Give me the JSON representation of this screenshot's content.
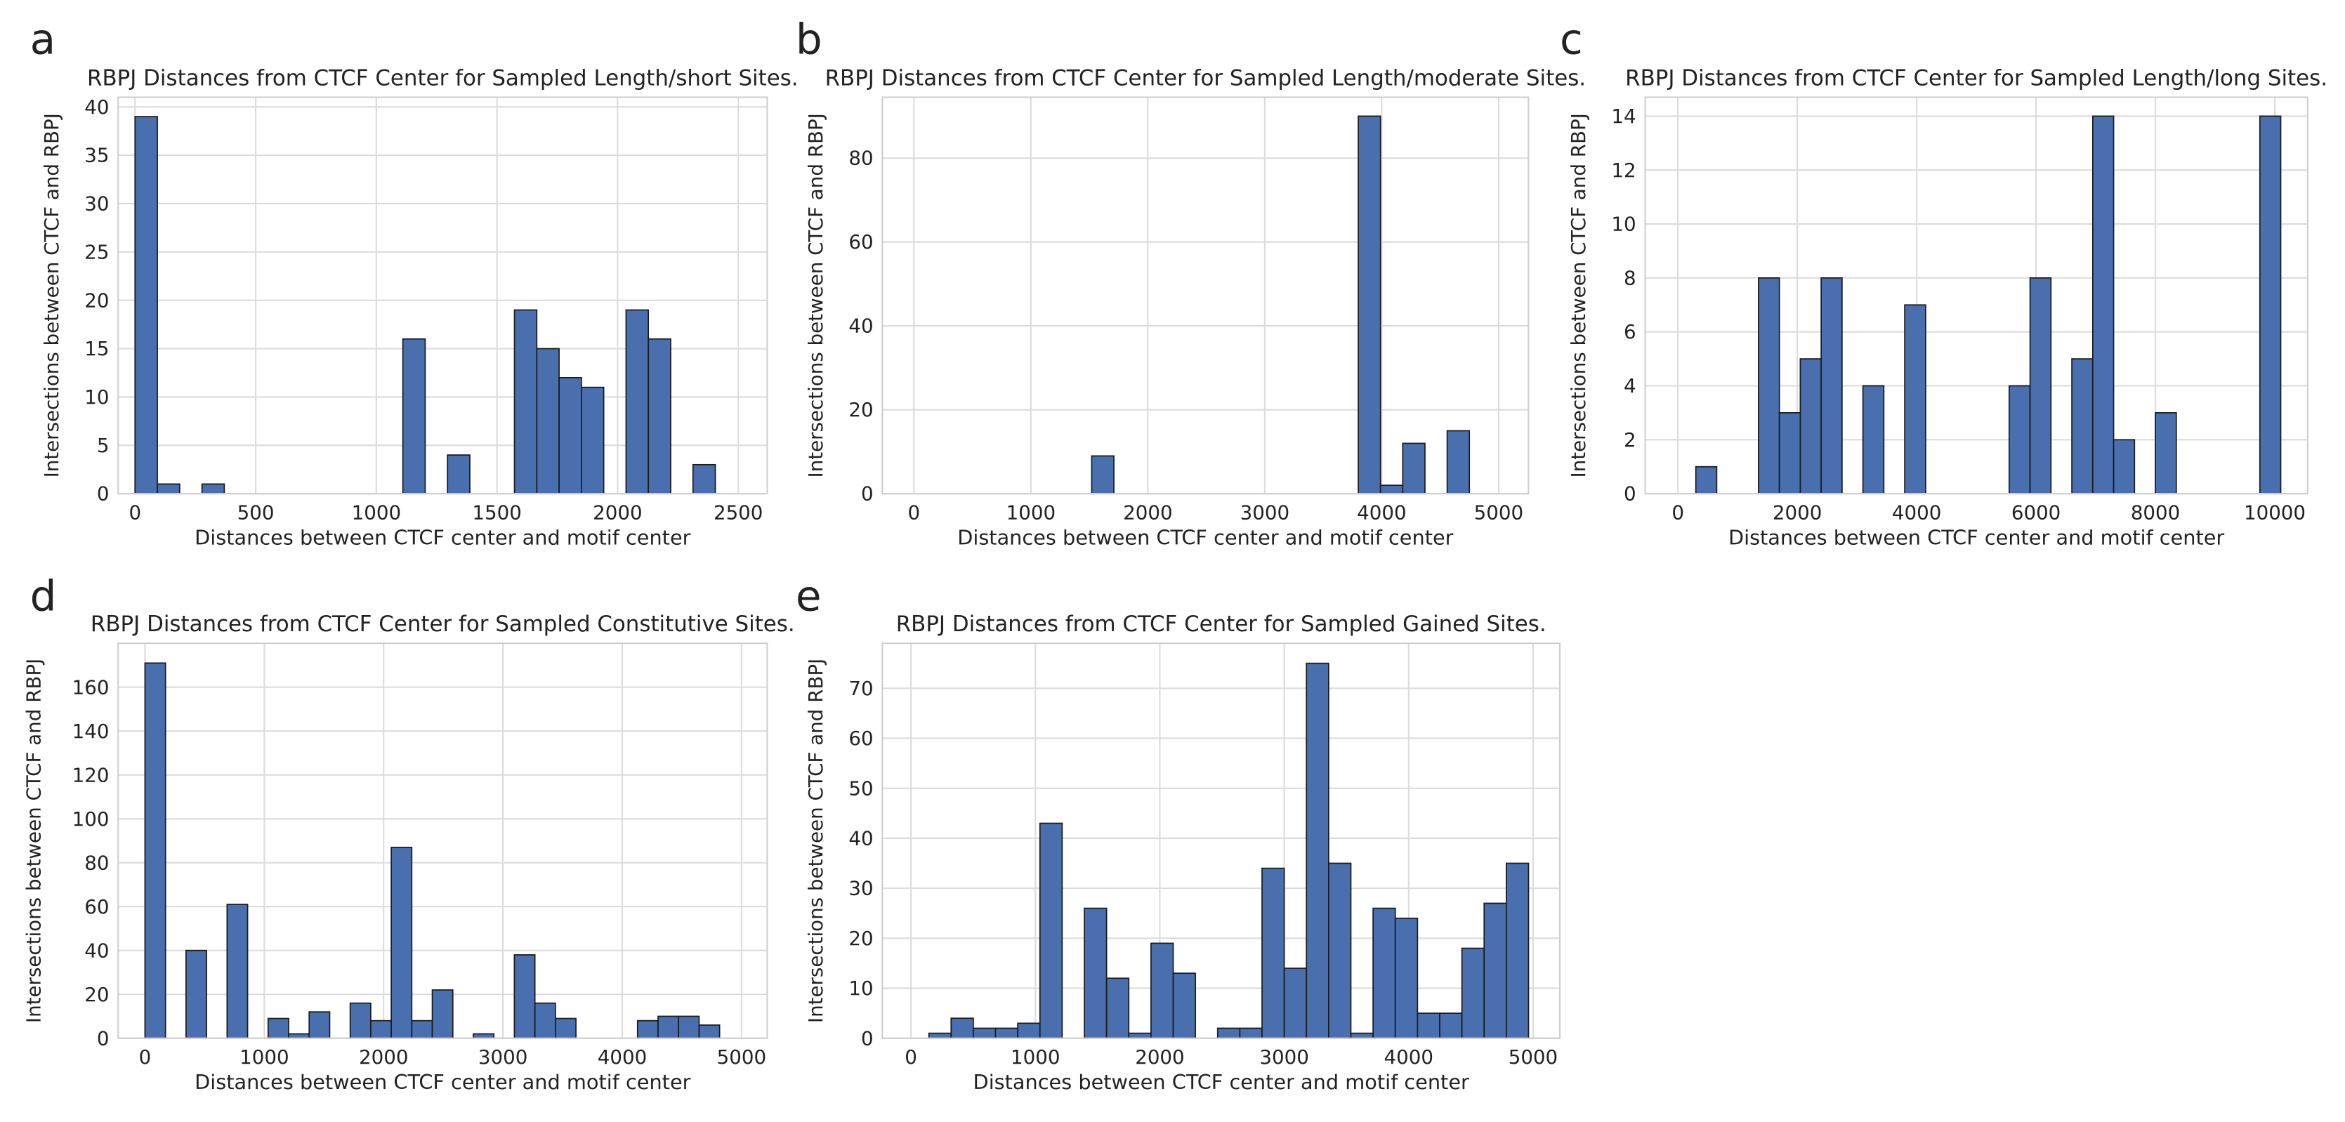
{
  "chart_data": [
    {
      "type": "histogram",
      "panel": "a",
      "title": "RBPJ Distances from CTCF Center for Sampled Length/short Sites.",
      "xlabel": "Distances between CTCF center and motif center",
      "ylabel": "Intersections between CTCF and RBPJ",
      "bins": [
        0,
        92.5,
        185,
        277.5,
        370,
        462.5,
        555,
        647.5,
        740,
        832.5,
        925,
        1017.5,
        1110,
        1202.5,
        1295,
        1387.5,
        1480,
        1572.5,
        1665,
        1757.5,
        1850,
        1942.5,
        2035,
        2127.5,
        2220,
        2312.5,
        2405
      ],
      "counts": [
        39,
        1,
        0,
        1,
        0,
        0,
        0,
        0,
        0,
        0,
        0,
        0,
        16,
        0,
        4,
        0,
        0,
        19,
        15,
        12,
        11,
        0,
        19,
        16,
        0,
        3
      ],
      "color": "#4a6fae",
      "xlim": [
        -70,
        2620
      ],
      "ylim": [
        0,
        41
      ],
      "xticks": [
        0,
        500,
        1000,
        1500,
        2000,
        2500
      ],
      "yticks": [
        0,
        5,
        10,
        15,
        20,
        25,
        30,
        35,
        40
      ],
      "grid": true
    },
    {
      "type": "histogram",
      "panel": "b",
      "title": "RBPJ Distances from CTCF Center for Sampled Length/moderate Sites.",
      "xlabel": "Distances between CTCF center and motif center",
      "ylabel": "Intersections between CTCF and RBPJ",
      "bins": [
        0,
        190,
        380,
        570,
        760,
        950,
        1140,
        1330,
        1520,
        1710,
        1900,
        2090,
        2280,
        2470,
        2660,
        2850,
        3040,
        3230,
        3420,
        3610,
        3800,
        3990,
        4180,
        4370,
        4560,
        4750,
        4940
      ],
      "counts": [
        0,
        0,
        0,
        0,
        0,
        0,
        0,
        0,
        9,
        0,
        0,
        0,
        0,
        0,
        0,
        0,
        0,
        0,
        0,
        0,
        90,
        2,
        12,
        0,
        15,
        0
      ],
      "color": "#4a6fae",
      "xlim": [
        -270,
        5255
      ],
      "ylim": [
        0,
        94.5
      ],
      "xticks": [
        0,
        1000,
        2000,
        3000,
        4000,
        5000
      ],
      "yticks": [
        0,
        20,
        40,
        60,
        80
      ],
      "grid": true
    },
    {
      "type": "histogram",
      "panel": "c",
      "title": "RBPJ Distances from CTCF Center for Sampled Length/long Sites.",
      "xlabel": "Distances between CTCF center and motif center",
      "ylabel": "Intersections between CTCF and RBPJ",
      "bins": [
        300,
        650,
        1000,
        1350,
        1700,
        2050,
        2400,
        2750,
        3100,
        3450,
        3800,
        4150,
        4500,
        4850,
        5200,
        5550,
        5900,
        6250,
        6600,
        6950,
        7300,
        7650,
        8000,
        8350,
        8700,
        9050,
        9400,
        9750,
        10100
      ],
      "counts": [
        1,
        0,
        0,
        8,
        3,
        5,
        8,
        0,
        4,
        0,
        7,
        0,
        0,
        0,
        0,
        4,
        8,
        0,
        5,
        14,
        2,
        0,
        3,
        0,
        0,
        0,
        0,
        14
      ],
      "color": "#4a6fae",
      "xlim": [
        -550,
        10550
      ],
      "ylim": [
        0,
        14.7
      ],
      "xticks": [
        0,
        2000,
        4000,
        6000,
        8000,
        10000
      ],
      "yticks": [
        0,
        2,
        4,
        6,
        8,
        10,
        12,
        14
      ],
      "grid": true
    },
    {
      "type": "histogram",
      "panel": "d",
      "title": "RBPJ Distances from CTCF Center for Sampled Constitutive Sites.",
      "xlabel": "Distances between CTCF center and motif center",
      "ylabel": "Intersections between CTCF and RBPJ",
      "bins": [
        0,
        172,
        344,
        516,
        688,
        860,
        1032,
        1204,
        1376,
        1548,
        1720,
        1892,
        2064,
        2236,
        2408,
        2580,
        2752,
        2924,
        3096,
        3268,
        3440,
        3612,
        3784,
        3956,
        4128,
        4300,
        4472,
        4644,
        4816
      ],
      "counts": [
        171,
        0,
        40,
        0,
        61,
        0,
        9,
        2,
        12,
        0,
        16,
        8,
        87,
        8,
        22,
        0,
        2,
        0,
        38,
        16,
        9,
        0,
        0,
        0,
        8,
        10,
        10,
        6
      ],
      "color": "#4a6fae",
      "xlim": [
        -225,
        5215
      ],
      "ylim": [
        0,
        180
      ],
      "xticks": [
        0,
        1000,
        2000,
        3000,
        4000,
        5000
      ],
      "yticks": [
        0,
        20,
        40,
        60,
        80,
        100,
        120,
        140,
        160
      ],
      "grid": true
    },
    {
      "type": "histogram",
      "panel": "e",
      "title": "RBPJ Distances from CTCF Center for Sampled Gained Sites.",
      "xlabel": "Distances between CTCF center and motif center",
      "ylabel": "Intersections between CTCF and RBPJ",
      "bins": [
        144,
        322.5,
        501,
        679.5,
        858,
        1036.5,
        1215,
        1393.5,
        1572,
        1750.5,
        1929,
        2107.5,
        2286,
        2464.5,
        2643,
        2821.5,
        3000,
        3178.5,
        3357,
        3535.5,
        3714,
        3892.5,
        4071,
        4249.5,
        4428,
        4606.5,
        4785,
        4963.5
      ],
      "counts": [
        1,
        4,
        2,
        2,
        3,
        43,
        0,
        26,
        12,
        1,
        19,
        13,
        0,
        2,
        2,
        34,
        14,
        75,
        35,
        1,
        26,
        24,
        5,
        5,
        18,
        27,
        35
      ],
      "color": "#4a6fae",
      "xlim": [
        -230,
        5215
      ],
      "ylim": [
        0,
        79
      ],
      "xticks": [
        0,
        1000,
        2000,
        3000,
        4000,
        5000
      ],
      "yticks": [
        0,
        10,
        20,
        30,
        40,
        50,
        60,
        70
      ],
      "grid": true
    }
  ]
}
